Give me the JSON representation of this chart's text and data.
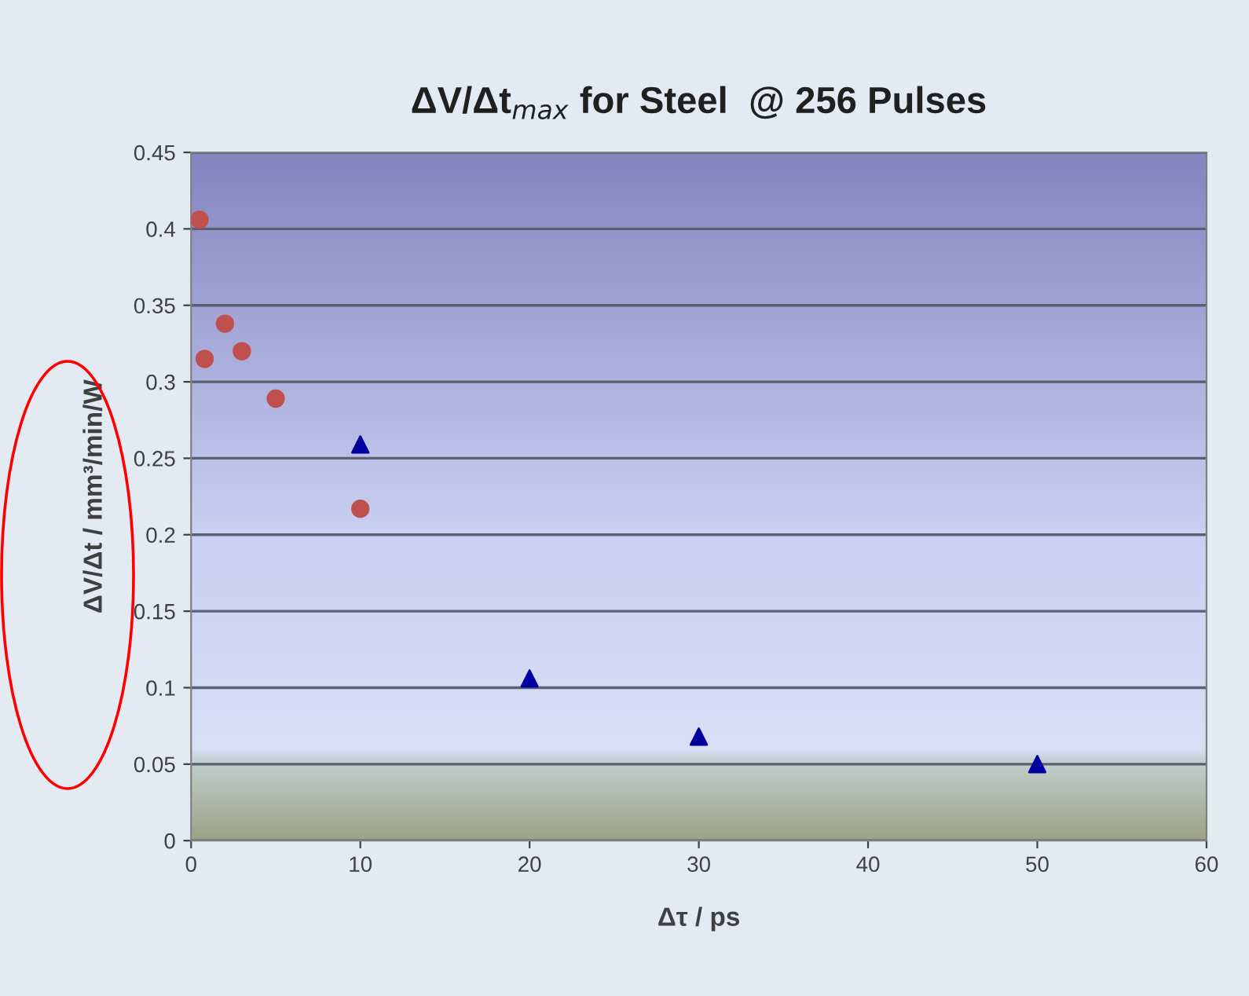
{
  "chart_data": {
    "type": "scatter",
    "title": "ΔV/Δt$_{max}$ for Steel  @ 256 Pulses",
    "xlabel": "Δτ / ps",
    "ylabel": "ΔV/Δt / mm³/min/W",
    "series": [
      {
        "color": "#c0504d",
        "marker": "circle",
        "x": [
          0.5,
          0.8,
          2,
          3,
          5,
          10
        ],
        "values": [
          0.406,
          0.315,
          0.338,
          0.32,
          0.289,
          0.217
        ]
      },
      {
        "color": "#0000a0",
        "marker": "triangle",
        "x": [
          10,
          20,
          30,
          50
        ],
        "values": [
          0.259,
          0.106,
          0.068,
          0.05
        ]
      }
    ],
    "xlim": [
      0,
      60
    ],
    "xticks": [
      0,
      10,
      20,
      30,
      40,
      50,
      60
    ],
    "ylim": [
      0,
      0.45
    ],
    "yticks": [
      0,
      0.05,
      0.1,
      0.15,
      0.2,
      0.25,
      0.3,
      0.35,
      0.4,
      0.45
    ],
    "grid": "y"
  }
}
